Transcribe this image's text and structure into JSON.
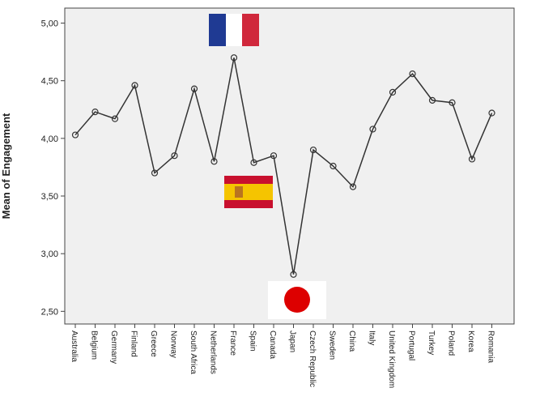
{
  "chart_data": {
    "type": "line",
    "y_label": "Mean of Engagement",
    "categories": [
      "Australia",
      "Belgium",
      "Germany",
      "Finland",
      "Greece",
      "Norway",
      "South Africa",
      "Netherlands",
      "France",
      "Spain",
      "Canada",
      "Japan",
      "Czech Republic",
      "Sweden",
      "China",
      "Italy",
      "United Kingdom",
      "Portugal",
      "Turkey",
      "Poland",
      "Korea",
      "Romania"
    ],
    "values": [
      4.03,
      4.23,
      4.17,
      4.46,
      3.7,
      3.85,
      4.43,
      3.8,
      4.7,
      3.79,
      3.85,
      2.82,
      3.9,
      3.76,
      3.58,
      4.08,
      4.4,
      4.56,
      4.33,
      4.31,
      3.82,
      4.22
    ],
    "color": "#333333",
    "ylim": [
      2.39,
      5.13
    ],
    "yticks": [
      {
        "value": 2.5,
        "label": "2,50"
      },
      {
        "value": 3,
        "label": "3,00"
      },
      {
        "value": 3.5,
        "label": "3,50"
      },
      {
        "value": 4,
        "label": "4,00"
      },
      {
        "value": 4.5,
        "label": "4,50"
      },
      {
        "value": 5,
        "label": "5,00"
      }
    ]
  }
}
